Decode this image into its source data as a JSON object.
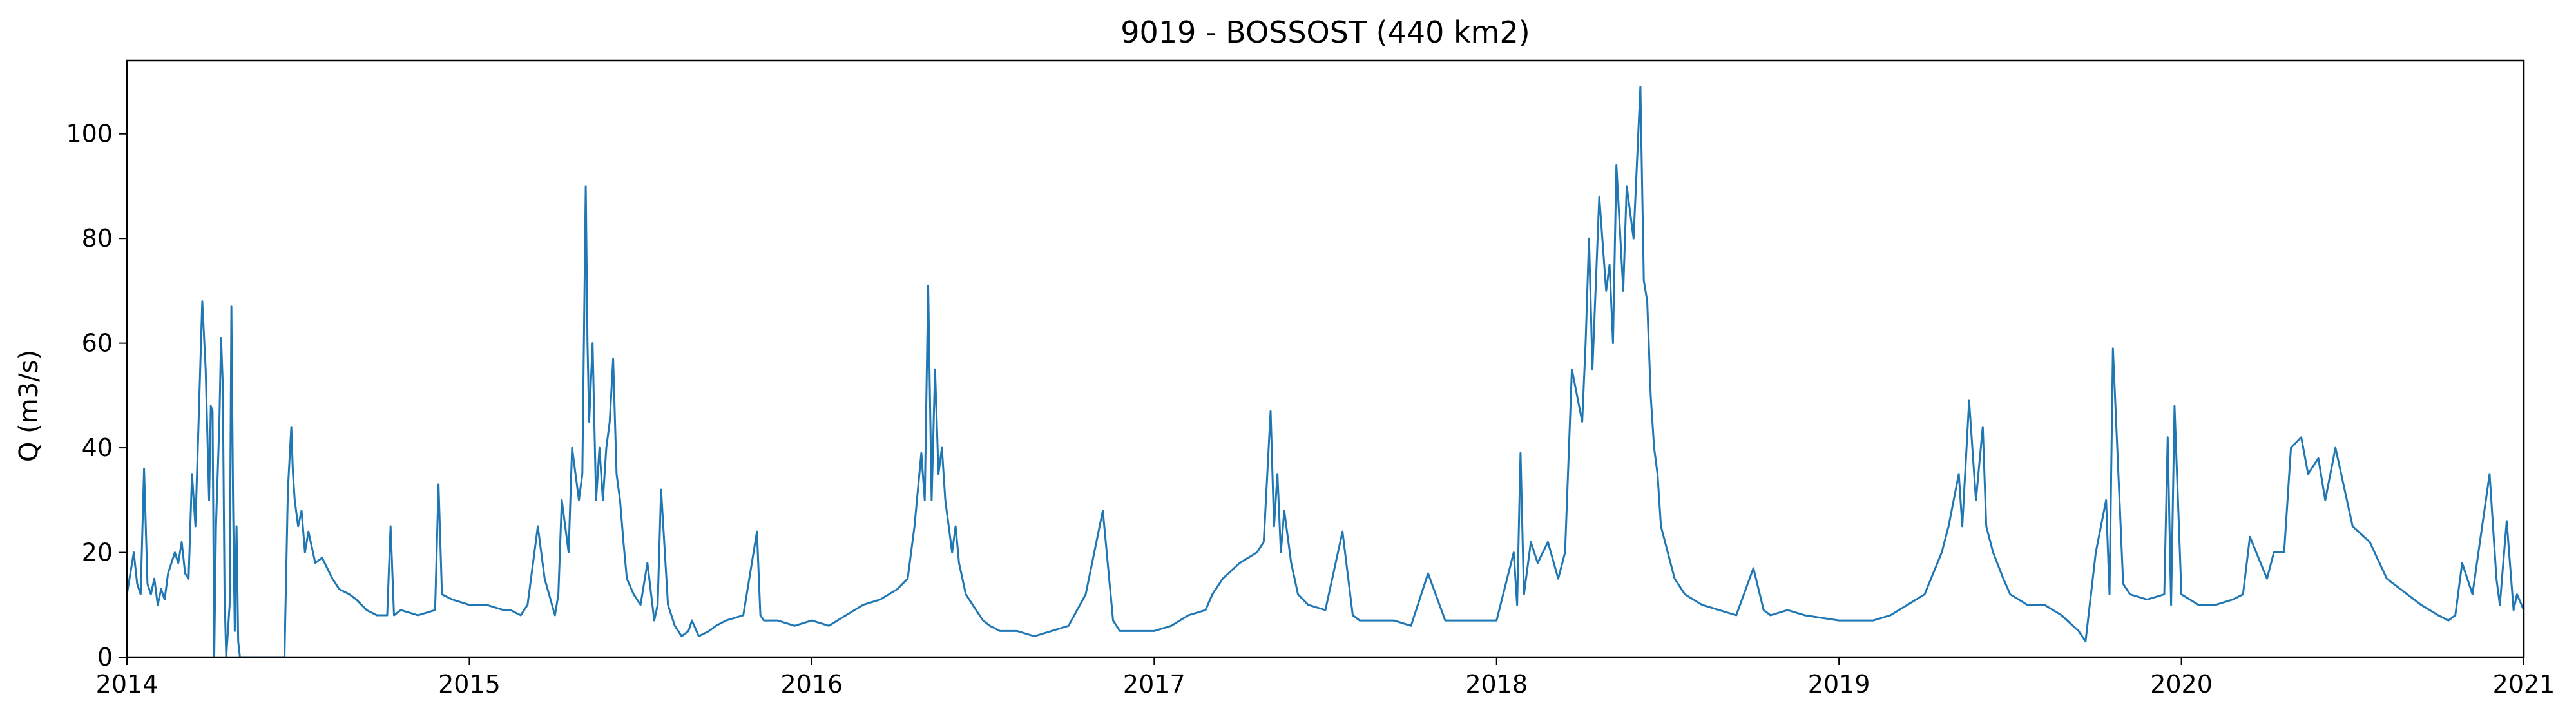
{
  "chart_data": {
    "type": "line",
    "title": "9019 - BOSSOST (440 km2)",
    "xlabel": "",
    "ylabel": "Q (m3/s)",
    "xlim": [
      2014.0,
      2021.0
    ],
    "ylim": [
      0,
      114
    ],
    "x_ticks": [
      2014,
      2015,
      2016,
      2017,
      2018,
      2019,
      2020,
      2021
    ],
    "x_tick_labels": [
      "2014",
      "2015",
      "2016",
      "2017",
      "2018",
      "2019",
      "2020",
      "2021"
    ],
    "y_ticks": [
      0,
      20,
      40,
      60,
      80,
      100
    ],
    "y_tick_labels": [
      "0",
      "20",
      "40",
      "60",
      "80",
      "100"
    ],
    "grid": false,
    "color": "#1f77b4",
    "series": [
      {
        "x": [
          2014.0,
          2014.02,
          2014.03,
          2014.04,
          2014.05,
          2014.06,
          2014.07,
          2014.08,
          2014.09,
          2014.1,
          2014.11,
          2014.12,
          2014.13,
          2014.14,
          2014.15,
          2014.16,
          2014.17,
          2014.18,
          2014.19,
          2014.2,
          2014.22,
          2014.23,
          2014.24,
          2014.245,
          2014.25,
          2014.255,
          2014.26,
          2014.27,
          2014.275,
          2014.28,
          2014.285,
          2014.29,
          2014.3,
          2014.305,
          2014.31,
          2014.315,
          2014.32,
          2014.325,
          2014.33,
          2014.34,
          2014.345,
          2014.35,
          2014.355,
          2014.36,
          2014.365,
          2014.37,
          2014.375,
          2014.38,
          2014.385,
          2014.39,
          2014.4,
          2014.405,
          2014.41,
          2014.42,
          2014.43,
          2014.46,
          2014.47,
          2014.48,
          2014.485,
          2014.49,
          2014.5,
          2014.51,
          2014.52,
          2014.53,
          2014.55,
          2014.57,
          2014.6,
          2014.62,
          2014.65,
          2014.67,
          2014.7,
          2014.73,
          2014.76,
          2014.77,
          2014.78,
          2014.8,
          2014.85,
          2014.9,
          2014.91,
          2014.92,
          2014.95,
          2015.0,
          2015.05,
          2015.1,
          2015.12,
          2015.15,
          2015.17,
          2015.2,
          2015.22,
          2015.25,
          2015.26,
          2015.27,
          2015.29,
          2015.3,
          2015.32,
          2015.33,
          2015.34,
          2015.345,
          2015.35,
          2015.36,
          2015.37,
          2015.38,
          2015.39,
          2015.4,
          2015.41,
          2015.42,
          2015.43,
          2015.44,
          2015.45,
          2015.46,
          2015.48,
          2015.5,
          2015.52,
          2015.54,
          2015.55,
          2015.56,
          2015.58,
          2015.6,
          2015.62,
          2015.64,
          2015.65,
          2015.67,
          2015.7,
          2015.72,
          2015.75,
          2015.8,
          2015.84,
          2015.85,
          2015.86,
          2015.9,
          2015.95,
          2016.0,
          2016.05,
          2016.1,
          2016.15,
          2016.2,
          2016.25,
          2016.28,
          2016.3,
          2016.32,
          2016.33,
          2016.34,
          2016.35,
          2016.36,
          2016.37,
          2016.38,
          2016.39,
          2016.4,
          2016.41,
          2016.42,
          2016.43,
          2016.45,
          2016.47,
          2016.5,
          2016.52,
          2016.55,
          2016.6,
          2016.65,
          2016.7,
          2016.75,
          2016.8,
          2016.85,
          2016.88,
          2016.89,
          2016.9,
          2016.95,
          2017.0,
          2017.05,
          2017.1,
          2017.15,
          2017.17,
          2017.2,
          2017.25,
          2017.3,
          2017.32,
          2017.34,
          2017.35,
          2017.36,
          2017.37,
          2017.38,
          2017.4,
          2017.42,
          2017.45,
          2017.5,
          2017.55,
          2017.58,
          2017.6,
          2017.65,
          2017.7,
          2017.75,
          2017.8,
          2017.85,
          2017.9,
          2017.95,
          2018.0,
          2018.05,
          2018.06,
          2018.07,
          2018.08,
          2018.1,
          2018.12,
          2018.15,
          2018.18,
          2018.2,
          2018.22,
          2018.25,
          2018.26,
          2018.27,
          2018.28,
          2018.3,
          2018.32,
          2018.33,
          2018.34,
          2018.35,
          2018.37,
          2018.38,
          2018.4,
          2018.42,
          2018.43,
          2018.44,
          2018.45,
          2018.46,
          2018.47,
          2018.48,
          2018.5,
          2018.52,
          2018.55,
          2018.6,
          2018.65,
          2018.7,
          2018.75,
          2018.78,
          2018.8,
          2018.85,
          2018.9,
          2019.0,
          2019.1,
          2019.15,
          2019.2,
          2019.25,
          2019.3,
          2019.32,
          2019.35,
          2019.36,
          2019.38,
          2019.4,
          2019.42,
          2019.43,
          2019.45,
          2019.48,
          2019.5,
          2019.55,
          2019.6,
          2019.65,
          2019.7,
          2019.72,
          2019.75,
          2019.78,
          2019.79,
          2019.8,
          2019.83,
          2019.85,
          2019.9,
          2019.95,
          2019.96,
          2019.97,
          2019.98,
          2020.0,
          2020.05,
          2020.1,
          2020.15,
          2020.18,
          2020.2,
          2020.25,
          2020.27,
          2020.3,
          2020.32,
          2020.35,
          2020.37,
          2020.4,
          2020.42,
          2020.45,
          2020.5,
          2020.55,
          2020.6,
          2020.7,
          2020.75,
          2020.78,
          2020.8,
          2020.82,
          2020.85,
          2020.9,
          2020.92,
          2020.93,
          2020.95,
          2020.97,
          2020.98,
          2021.0
        ],
        "values": [
          12,
          20,
          14,
          12,
          36,
          14,
          12,
          15,
          10,
          13,
          11,
          16,
          18,
          20,
          18,
          22,
          16,
          15,
          35,
          25,
          68,
          55,
          30,
          48,
          47,
          0,
          25,
          45,
          61,
          52,
          12,
          0,
          10,
          67,
          30,
          5,
          25,
          3,
          0,
          0,
          0,
          0,
          0,
          0,
          0,
          0,
          0,
          0,
          0,
          0,
          0,
          0,
          0,
          0,
          0,
          0,
          32,
          44,
          35,
          30,
          25,
          28,
          20,
          24,
          18,
          19,
          15,
          13,
          12,
          11,
          9,
          8,
          8,
          25,
          8,
          9,
          8,
          9,
          33,
          12,
          11,
          10,
          10,
          9,
          9,
          8,
          10,
          25,
          15,
          8,
          12,
          30,
          20,
          40,
          30,
          35,
          90,
          60,
          45,
          60,
          30,
          40,
          30,
          40,
          45,
          57,
          35,
          30,
          22,
          15,
          12,
          10,
          18,
          7,
          10,
          32,
          10,
          6,
          4,
          5,
          7,
          4,
          5,
          6,
          7,
          8,
          24,
          8,
          7,
          7,
          6,
          7,
          6,
          8,
          10,
          11,
          13,
          15,
          25,
          39,
          30,
          71,
          30,
          55,
          35,
          40,
          30,
          25,
          20,
          25,
          18,
          12,
          10,
          7,
          6,
          5,
          5,
          4,
          5,
          6,
          12,
          28,
          7,
          6,
          5,
          5,
          5,
          6,
          8,
          9,
          12,
          15,
          18,
          20,
          22,
          47,
          25,
          35,
          20,
          28,
          18,
          12,
          10,
          9,
          24,
          8,
          7,
          7,
          7,
          6,
          16,
          7,
          7,
          7,
          7,
          20,
          10,
          39,
          12,
          22,
          18,
          22,
          15,
          20,
          55,
          45,
          60,
          80,
          55,
          88,
          70,
          75,
          60,
          94,
          70,
          90,
          80,
          109,
          72,
          68,
          50,
          40,
          35,
          25,
          20,
          15,
          12,
          10,
          9,
          8,
          17,
          9,
          8,
          9,
          8,
          7,
          7,
          8,
          10,
          12,
          20,
          25,
          35,
          25,
          49,
          30,
          44,
          25,
          20,
          15,
          12,
          10,
          10,
          8,
          5,
          3,
          20,
          30,
          12,
          59,
          14,
          12,
          11,
          12,
          42,
          10,
          48,
          12,
          10,
          10,
          11,
          12,
          23,
          15,
          20,
          20,
          40,
          42,
          35,
          38,
          30,
          40,
          25,
          22,
          15,
          10,
          8,
          7,
          8,
          18,
          12,
          35,
          15,
          10,
          26,
          9,
          12,
          9
        ]
      }
    ]
  }
}
